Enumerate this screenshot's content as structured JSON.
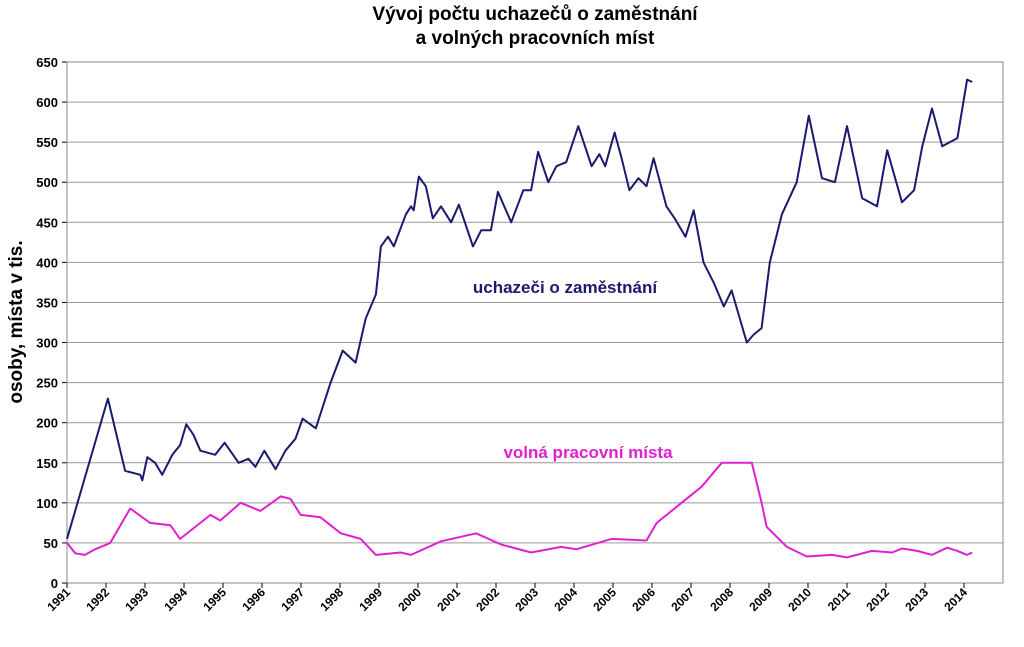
{
  "chart_data": {
    "type": "line",
    "title": [
      "Vývoj počtu uchazečů o zaměstnání",
      "a volných pracovních míst"
    ],
    "y_label": "osoby, místa v tis.",
    "annotations": [
      "uchazeči o zaměstnání",
      "volná pracovní místa"
    ],
    "xlim": [
      1991,
      2015
    ],
    "xticks": [
      1991,
      1992,
      1993,
      1994,
      1995,
      1996,
      1997,
      1998,
      1999,
      2000,
      2001,
      2002,
      2003,
      2004,
      2005,
      2006,
      2007,
      2008,
      2009,
      2010,
      2011,
      2012,
      2013,
      2014
    ],
    "ylim": [
      0,
      650
    ],
    "yticks": [
      0,
      50,
      100,
      150,
      200,
      250,
      300,
      350,
      400,
      450,
      500,
      550,
      600,
      650
    ],
    "grid": true,
    "series": [
      {
        "name": "uchazeči o zaměstnání",
        "color": "#1a1a6e",
        "x": [
          1991.0,
          1992.05,
          1992.49,
          1992.88,
          1992.93,
          1993.06,
          1993.26,
          1993.44,
          1993.7,
          1993.9,
          1994.06,
          1994.24,
          1994.42,
          1994.8,
          1995.04,
          1995.4,
          1995.65,
          1995.83,
          1996.06,
          1996.35,
          1996.6,
          1996.86,
          1997.04,
          1997.38,
          1997.76,
          1998.07,
          1998.4,
          1998.66,
          1998.92,
          1999.05,
          1999.23,
          1999.38,
          1999.69,
          1999.82,
          1999.89,
          2000.02,
          2000.2,
          2000.38,
          2000.59,
          2000.85,
          2001.05,
          2001.41,
          2001.62,
          2001.87,
          2002.05,
          2002.39,
          2002.7,
          2002.9,
          2003.08,
          2003.34,
          2003.55,
          2003.8,
          2004.11,
          2004.45,
          2004.65,
          2004.8,
          2005.04,
          2005.22,
          2005.42,
          2005.65,
          2005.86,
          2006.04,
          2006.37,
          2006.58,
          2006.86,
          2007.07,
          2007.32,
          2007.58,
          2007.84,
          2008.04,
          2008.43,
          2008.61,
          2008.81,
          2009.02,
          2009.33,
          2009.71,
          2010.02,
          2010.36,
          2010.69,
          2011.0,
          2011.39,
          2011.77,
          2012.03,
          2012.41,
          2012.72,
          2012.93,
          2013.18,
          2013.44,
          2013.83,
          2014.08,
          2014.21
        ],
        "values": [
          55,
          230,
          140,
          135,
          128,
          157,
          150,
          135,
          160,
          172,
          198,
          185,
          165,
          160,
          175,
          150,
          155,
          145,
          165,
          142,
          165,
          180,
          205,
          193,
          250,
          290,
          275,
          330,
          360,
          420,
          432,
          420,
          460,
          470,
          465,
          507,
          495,
          455,
          470,
          450,
          472,
          420,
          440,
          440,
          488,
          450,
          490,
          490,
          538,
          500,
          520,
          525,
          570,
          520,
          535,
          520,
          562,
          530,
          490,
          505,
          495,
          530,
          470,
          455,
          432,
          465,
          400,
          375,
          345,
          365,
          300,
          310,
          318,
          400,
          460,
          500,
          583,
          505,
          500,
          570,
          480,
          470,
          540,
          475,
          490,
          545,
          592,
          545,
          555,
          628,
          625
        ]
      },
      {
        "name": "volná pracovní místa",
        "color": "#e020d0",
        "x": [
          1991.0,
          1991.21,
          1991.46,
          1991.72,
          1992.11,
          1992.62,
          1993.13,
          1993.65,
          1993.9,
          1994.16,
          1994.68,
          1994.93,
          1995.45,
          1995.96,
          1996.48,
          1996.73,
          1996.99,
          1997.5,
          1998.02,
          1998.53,
          1998.92,
          1999.56,
          1999.82,
          2000.59,
          2001.49,
          2002.13,
          2002.9,
          2003.67,
          2004.06,
          2004.96,
          2005.86,
          2006.12,
          2006.76,
          2007.27,
          2007.79,
          2008.56,
          2008.81,
          2008.94,
          2009.46,
          2009.97,
          2010.61,
          2011.0,
          2011.64,
          2012.16,
          2012.41,
          2012.8,
          2013.18,
          2013.57,
          2013.83,
          2014.08,
          2014.21
        ],
        "values": [
          50,
          37,
          35,
          42,
          50,
          93,
          75,
          72,
          55,
          65,
          85,
          78,
          100,
          90,
          108,
          105,
          85,
          82,
          62,
          55,
          35,
          38,
          35,
          52,
          62,
          48,
          38,
          45,
          42,
          55,
          53,
          75,
          100,
          120,
          150,
          150,
          100,
          70,
          45,
          33,
          35,
          32,
          40,
          38,
          43,
          40,
          35,
          44,
          40,
          35,
          38
        ]
      }
    ]
  }
}
